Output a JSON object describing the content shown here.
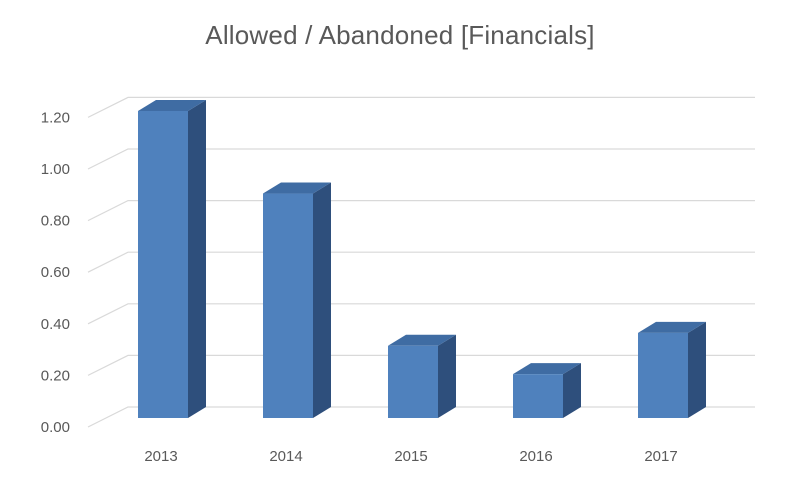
{
  "chart_data": {
    "type": "bar",
    "title": "Allowed / Abandoned [Financials]",
    "xlabel": "",
    "ylabel": "",
    "categories": [
      "2013",
      "2014",
      "2015",
      "2016",
      "2017"
    ],
    "values": [
      1.19,
      0.87,
      0.28,
      0.17,
      0.33
    ],
    "ylim": [
      0,
      1.2
    ],
    "yticks": [
      "0.00",
      "0.20",
      "0.40",
      "0.60",
      "0.80",
      "1.00",
      "1.20"
    ],
    "grid": true,
    "legend": "none",
    "style": "3d-column",
    "colors": {
      "bar_front": "#4F81BD",
      "bar_side": "#2E4F7C",
      "bar_top": "#3F6CA3",
      "grid": "#D9D9D9",
      "text": "#595959"
    }
  }
}
